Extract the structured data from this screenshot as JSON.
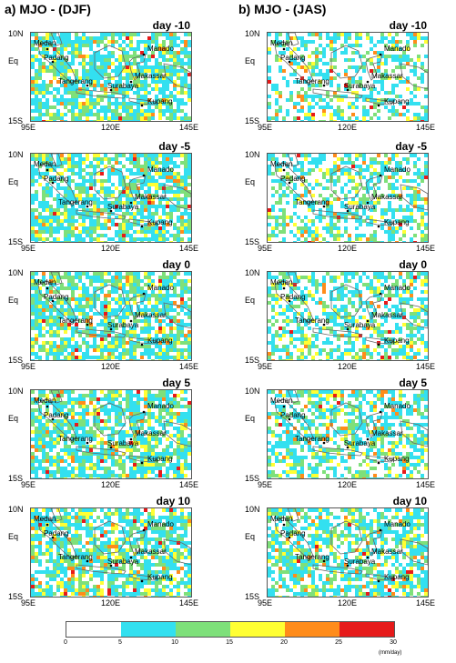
{
  "columns": [
    {
      "title": "a) MJO - (DJF)"
    },
    {
      "title": "b) MJO - (JAS)"
    }
  ],
  "rows": [
    "day -10",
    "day -5",
    "day 0",
    "day 5",
    "day 10"
  ],
  "lat_labels": [
    "10N",
    "Eq",
    "15S"
  ],
  "lon_labels": [
    "95E",
    "120E",
    "145E"
  ],
  "cities": [
    "Medan",
    "Padang",
    "Tangerang",
    "Surabaya",
    "Makassar",
    "Manado",
    "Kupang"
  ],
  "colorbar": {
    "ticks": [
      "0",
      "5",
      "10",
      "15",
      "20",
      "25",
      "30"
    ],
    "unit": "(mm/day)",
    "colors": [
      "#ffffff",
      "#33e0f0",
      "#7ee07a",
      "#ffff33",
      "#ff8c1a",
      "#e61a1a"
    ]
  }
}
